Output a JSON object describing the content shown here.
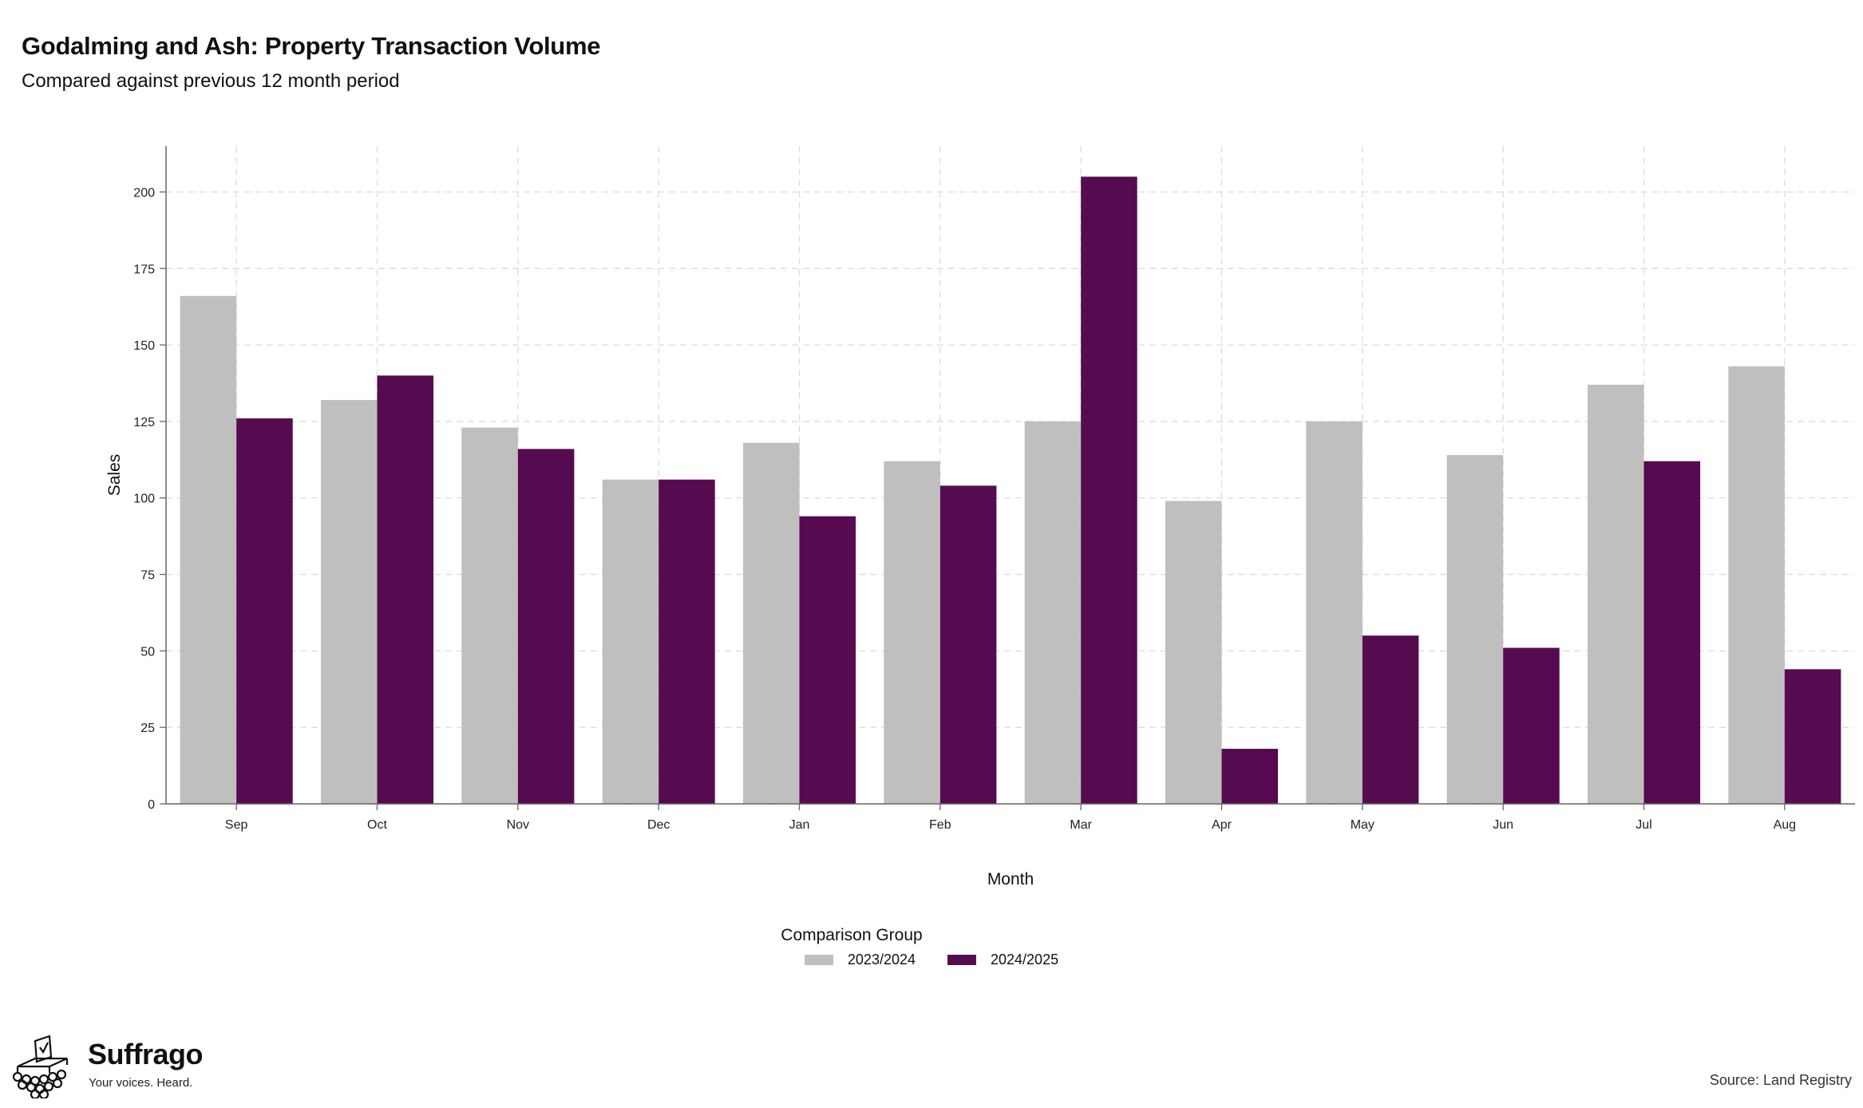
{
  "header": {
    "title": "Godalming and Ash: Property Transaction Volume",
    "subtitle": "Compared against previous 12 month period"
  },
  "chart_data": {
    "type": "bar",
    "title": "Godalming and Ash: Property Transaction Volume",
    "subtitle": "Compared against previous 12 month period",
    "xlabel": "Month",
    "ylabel": "Sales",
    "categories": [
      "Sep",
      "Oct",
      "Nov",
      "Dec",
      "Jan",
      "Feb",
      "Mar",
      "Apr",
      "May",
      "Jun",
      "Jul",
      "Aug"
    ],
    "series": [
      {
        "name": "2023/2024",
        "color": "#bfbfbf",
        "values": [
          166,
          132,
          123,
          106,
          118,
          112,
          125,
          99,
          125,
          114,
          137,
          143
        ]
      },
      {
        "name": "2024/2025",
        "color": "#560b51",
        "values": [
          126,
          140,
          116,
          106,
          94,
          104,
          205,
          18,
          55,
          51,
          112,
          44
        ]
      }
    ],
    "ylim": [
      0,
      215
    ],
    "yticks": [
      0,
      25,
      50,
      75,
      100,
      125,
      150,
      175,
      200
    ],
    "grid": true,
    "legend": {
      "title": "Comparison Group",
      "position": "bottom"
    }
  },
  "branding": {
    "name": "Suffrago",
    "tagline": "Your voices. Heard.",
    "logo_icon": "ballot-box-icon"
  },
  "footer": {
    "source": "Source: Land Registry"
  }
}
